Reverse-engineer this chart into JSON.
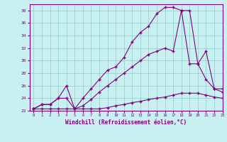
{
  "xlabel": "Windchill (Refroidissement éolien,°C)",
  "bg_color": "#c8f0f0",
  "line_color": "#800080",
  "ylim": [
    22,
    39
  ],
  "xlim": [
    -0.5,
    23
  ],
  "yticks": [
    22,
    24,
    26,
    28,
    30,
    32,
    34,
    36,
    38
  ],
  "xticks": [
    0,
    1,
    2,
    3,
    4,
    5,
    6,
    7,
    8,
    9,
    10,
    11,
    12,
    13,
    14,
    15,
    16,
    17,
    18,
    19,
    20,
    21,
    22,
    23
  ],
  "series1_x": [
    0,
    1,
    2,
    3,
    4,
    5,
    6,
    7,
    8,
    9,
    10,
    11,
    12,
    13,
    14,
    15,
    16,
    17,
    18,
    19,
    20,
    21,
    22,
    23
  ],
  "series1_y": [
    22.3,
    22.3,
    22.3,
    22.3,
    22.3,
    22.3,
    22.3,
    22.3,
    22.3,
    22.5,
    22.8,
    23.0,
    23.3,
    23.5,
    23.8,
    24.0,
    24.2,
    24.5,
    24.8,
    24.8,
    24.8,
    24.5,
    24.2,
    24.0
  ],
  "series2_x": [
    0,
    1,
    2,
    3,
    4,
    5,
    6,
    7,
    8,
    9,
    10,
    11,
    12,
    13,
    14,
    15,
    16,
    17,
    18,
    19,
    20,
    21,
    22,
    23
  ],
  "series2_y": [
    22.3,
    23.0,
    23.0,
    24.0,
    26.0,
    22.3,
    22.8,
    23.8,
    25.0,
    26.0,
    27.0,
    28.0,
    29.0,
    30.0,
    31.0,
    31.5,
    32.0,
    31.5,
    38.0,
    29.5,
    29.5,
    27.0,
    25.5,
    25.5
  ],
  "series3_x": [
    0,
    1,
    2,
    3,
    4,
    5,
    6,
    7,
    8,
    9,
    10,
    11,
    12,
    13,
    14,
    15,
    16,
    17,
    18,
    19,
    20,
    21,
    22,
    23
  ],
  "series3_y": [
    22.3,
    23.0,
    23.0,
    24.0,
    24.0,
    22.3,
    24.0,
    25.5,
    27.0,
    28.5,
    29.0,
    30.5,
    33.0,
    34.5,
    35.5,
    37.5,
    38.5,
    38.5,
    38.0,
    38.0,
    29.5,
    31.5,
    25.5,
    25.0
  ],
  "marker": "+"
}
